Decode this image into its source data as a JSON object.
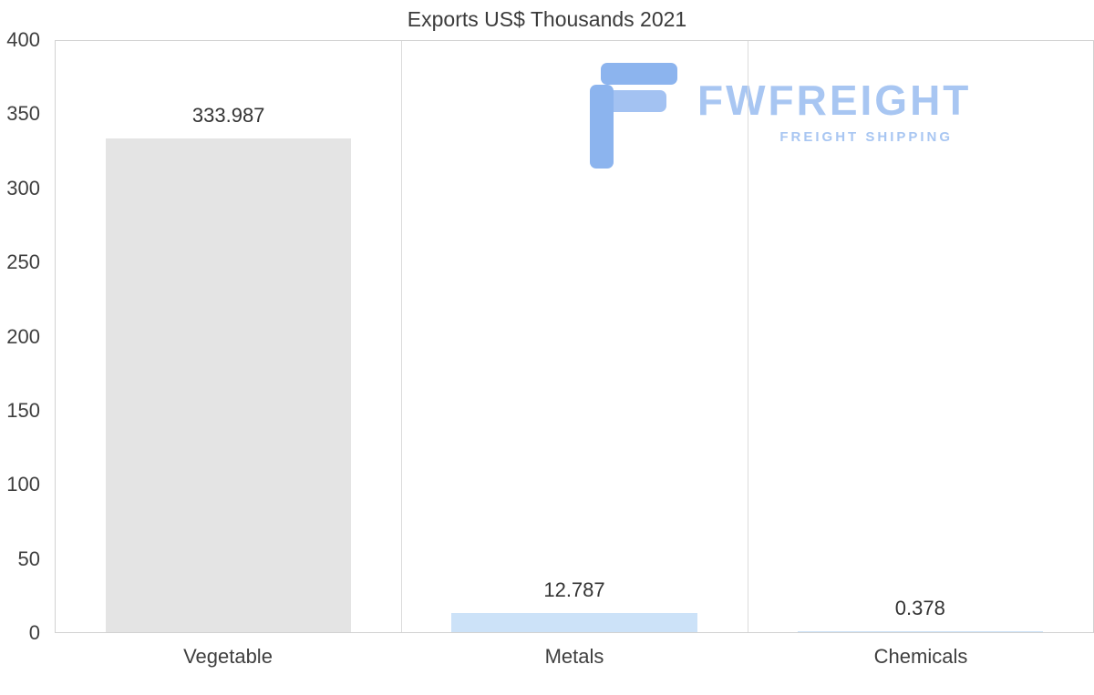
{
  "title": "Exports US$ Thousands 2021",
  "logo": {
    "brand": "FWFREIGHT",
    "tagline": "FREIGHT SHIPPING",
    "text_color": "#a8c6f2",
    "icon_color": "#8cb4ee",
    "icon_color_light": "#a3c2f2"
  },
  "chart_data": {
    "type": "bar",
    "title": "Exports US$ Thousands 2021",
    "categories": [
      "Vegetable",
      "Metals",
      "Chemicals"
    ],
    "values": [
      333.987,
      12.787,
      0.378
    ],
    "value_labels": [
      "333.987",
      "12.787",
      "0.378"
    ],
    "bar_colors": [
      "#e4e4e4",
      "#cce2f8",
      "#cce2f8"
    ],
    "xlabel": "",
    "ylabel": "",
    "ylim": [
      0,
      400
    ],
    "yticks": [
      0,
      50,
      100,
      150,
      200,
      250,
      300,
      350,
      400
    ],
    "grid": "vertical-only",
    "plot_border_color": "#d2d2d2",
    "legend": "none"
  }
}
